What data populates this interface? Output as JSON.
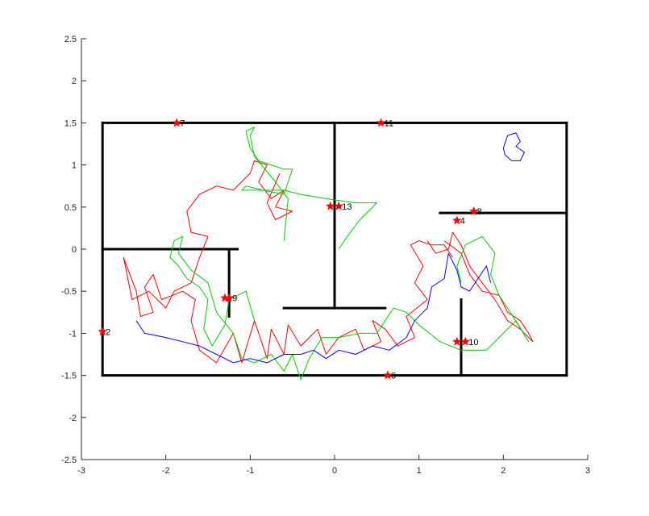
{
  "chart_data": {
    "type": "line",
    "xlim": [
      -3,
      3
    ],
    "ylim": [
      -2.5,
      2.5
    ],
    "xticks": [
      "-3",
      "-2",
      "-1",
      "0",
      "1",
      "2",
      "3"
    ],
    "yticks": [
      "-2.5",
      "-2",
      "-1.5",
      "-1",
      "-0.5",
      "0",
      "0.5",
      "1",
      "1.5",
      "2",
      "2.5"
    ],
    "grid": false,
    "box": false,
    "walls": [
      {
        "x": [
          -2.75,
          2.75
        ],
        "y": [
          1.5,
          1.5
        ]
      },
      {
        "x": [
          -2.75,
          2.75
        ],
        "y": [
          -1.5,
          -1.5
        ]
      },
      {
        "x": [
          -2.75,
          -2.75
        ],
        "y": [
          -1.5,
          1.5
        ]
      },
      {
        "x": [
          2.75,
          2.75
        ],
        "y": [
          -1.5,
          1.5
        ]
      },
      {
        "x": [
          0,
          0
        ],
        "y": [
          -0.7,
          1.5
        ]
      },
      {
        "x": [
          -0.6,
          0.6
        ],
        "y": [
          -0.7,
          -0.7
        ]
      },
      {
        "x": [
          -2.75,
          -1.15
        ],
        "y": [
          0,
          0
        ]
      },
      {
        "x": [
          -1.25,
          -1.25
        ],
        "y": [
          -0.8,
          0
        ]
      },
      {
        "x": [
          1.25,
          2.75
        ],
        "y": [
          0.43,
          0.43
        ]
      },
      {
        "x": [
          1.5,
          1.5
        ],
        "y": [
          -1.5,
          -0.6
        ]
      }
    ],
    "markers": [
      {
        "x": -2.75,
        "y": -0.98,
        "label": "2"
      },
      {
        "x": 1.45,
        "y": 0.34,
        "label": "4"
      },
      {
        "x": 0.63,
        "y": -1.5,
        "label": "6"
      },
      {
        "x": -1.87,
        "y": 1.5,
        "label": "7"
      },
      {
        "x": 1.65,
        "y": 0.45,
        "label": "8"
      },
      {
        "x": -1.25,
        "y": -0.58,
        "label": "9"
      },
      {
        "x": 1.55,
        "y": -1.1,
        "label": "10"
      },
      {
        "x": 0.55,
        "y": 1.5,
        "label": "11"
      },
      {
        "x": 0.05,
        "y": 0.51,
        "label": "13"
      },
      {
        "x": -1.3,
        "y": -0.58,
        "label": ""
      },
      {
        "x": 1.45,
        "y": -1.1,
        "label": ""
      },
      {
        "x": -0.05,
        "y": 0.51,
        "label": ""
      }
    ],
    "series": [
      {
        "color": "#ff0000",
        "points": [
          [
            1.4,
            -0.1
          ],
          [
            1.3,
            0.05
          ],
          [
            1.15,
            0.05
          ],
          [
            1.0,
            0.1
          ],
          [
            0.9,
            0.05
          ],
          [
            1.05,
            -0.2
          ],
          [
            0.95,
            -0.4
          ],
          [
            1.1,
            -0.6
          ],
          [
            0.85,
            -0.8
          ],
          [
            0.95,
            -1.05
          ],
          [
            0.75,
            -1.15
          ],
          [
            0.6,
            -0.95
          ],
          [
            0.45,
            -0.85
          ],
          [
            0.55,
            -1.1
          ],
          [
            0.35,
            -1.2
          ],
          [
            0.25,
            -0.95
          ],
          [
            0.05,
            -1.05
          ],
          [
            -0.1,
            -1.25
          ],
          [
            -0.2,
            -0.95
          ],
          [
            -0.4,
            -1.15
          ],
          [
            -0.55,
            -0.9
          ],
          [
            -0.6,
            -1.25
          ],
          [
            -0.75,
            -0.95
          ],
          [
            -0.8,
            -1.3
          ],
          [
            -0.95,
            -0.85
          ],
          [
            -1.1,
            -1.35
          ],
          [
            -1.2,
            -1.0
          ],
          [
            -1.4,
            -1.35
          ],
          [
            -1.6,
            -1.2
          ],
          [
            -1.7,
            -0.85
          ],
          [
            -1.65,
            -0.6
          ],
          [
            -1.8,
            -0.5
          ],
          [
            -2.05,
            -0.6
          ],
          [
            -2.15,
            -0.3
          ],
          [
            -2.25,
            -0.45
          ],
          [
            -2.15,
            -0.75
          ],
          [
            -2.3,
            -0.8
          ],
          [
            -2.35,
            -0.5
          ],
          [
            -2.5,
            -0.1
          ],
          [
            -2.4,
            -0.6
          ],
          [
            -2.2,
            -0.5
          ],
          [
            -2.0,
            -0.7
          ],
          [
            -1.9,
            -0.5
          ],
          [
            -1.7,
            -0.4
          ],
          [
            -1.6,
            -0.1
          ],
          [
            -1.5,
            0.15
          ],
          [
            -1.7,
            0.2
          ],
          [
            -1.75,
            0.45
          ],
          [
            -1.6,
            0.65
          ],
          [
            -1.4,
            0.75
          ],
          [
            -1.2,
            0.7
          ],
          [
            -1.0,
            0.9
          ],
          [
            -0.95,
            1.05
          ],
          [
            -0.8,
            1.0
          ],
          [
            -0.9,
            0.8
          ],
          [
            -0.75,
            0.6
          ],
          [
            -0.6,
            0.7
          ],
          [
            -0.7,
            0.5
          ],
          [
            -0.5,
            0.45
          ],
          [
            -0.7,
            0.35
          ],
          [
            -0.8,
            0.55
          ],
          [
            -0.65,
            0.9
          ]
        ]
      },
      {
        "color": "#ff0000",
        "points": [
          [
            1.3,
            0.1
          ],
          [
            1.5,
            -0.05
          ],
          [
            1.6,
            -0.3
          ],
          [
            1.75,
            -0.5
          ],
          [
            1.95,
            -0.55
          ],
          [
            2.05,
            -0.75
          ],
          [
            2.2,
            -0.85
          ],
          [
            2.3,
            -1.0
          ],
          [
            2.35,
            -1.1
          ],
          [
            2.2,
            -0.95
          ],
          [
            2.05,
            -0.85
          ],
          [
            1.9,
            -0.6
          ],
          [
            1.75,
            -0.4
          ],
          [
            1.6,
            -0.2
          ],
          [
            1.5,
            0.05
          ],
          [
            1.4,
            0.2
          ],
          [
            1.35,
            0.0
          ],
          [
            1.2,
            -0.05
          ],
          [
            1.1,
            0.1
          ]
        ]
      },
      {
        "color": "#00cc00",
        "points": [
          [
            -0.95,
            -0.85
          ],
          [
            -1.05,
            -0.5
          ],
          [
            -1.25,
            -0.6
          ],
          [
            -1.3,
            -0.9
          ],
          [
            -1.45,
            -1.15
          ],
          [
            -1.55,
            -0.95
          ],
          [
            -1.5,
            -0.6
          ],
          [
            -1.6,
            -0.45
          ],
          [
            -1.75,
            -0.35
          ],
          [
            -1.85,
            -0.2
          ],
          [
            -1.95,
            -0.1
          ],
          [
            -1.9,
            0.1
          ],
          [
            -1.8,
            0.15
          ],
          [
            -1.85,
            -0.05
          ],
          [
            -1.7,
            -0.25
          ],
          [
            -1.5,
            -0.4
          ],
          [
            -1.4,
            -0.75
          ],
          [
            -1.2,
            -1.0
          ],
          [
            -1.1,
            -1.3
          ],
          [
            -0.95,
            -1.35
          ],
          [
            -0.75,
            -1.25
          ],
          [
            -0.6,
            -1.45
          ],
          [
            -0.5,
            -1.25
          ],
          [
            -0.4,
            -1.55
          ],
          [
            -0.3,
            -1.3
          ],
          [
            -0.15,
            -1.05
          ],
          [
            0.05,
            -1.05
          ],
          [
            0.3,
            -1.0
          ],
          [
            0.5,
            -1.0
          ],
          [
            0.7,
            -0.7
          ],
          [
            0.85,
            -0.75
          ],
          [
            1.0,
            -0.9
          ],
          [
            1.25,
            -1.1
          ],
          [
            1.5,
            -1.2
          ],
          [
            1.8,
            -1.2
          ],
          [
            2.0,
            -1.0
          ],
          [
            2.15,
            -0.85
          ],
          [
            2.3,
            -1.1
          ],
          [
            2.05,
            -0.7
          ],
          [
            1.95,
            -0.55
          ],
          [
            1.85,
            -0.3
          ],
          [
            1.9,
            -0.05
          ],
          [
            1.75,
            0.15
          ],
          [
            1.55,
            0.05
          ],
          [
            1.45,
            -0.2
          ],
          [
            1.5,
            -0.4
          ]
        ]
      },
      {
        "color": "#00cc00",
        "points": [
          [
            -0.6,
            0.1
          ],
          [
            -0.55,
            0.6
          ],
          [
            -0.7,
            0.8
          ],
          [
            -0.95,
            1.1
          ],
          [
            -1.0,
            1.35
          ],
          [
            -0.95,
            1.45
          ],
          [
            -1.05,
            1.4
          ],
          [
            -1.0,
            1.2
          ],
          [
            -0.9,
            1.05
          ],
          [
            -0.75,
            1.0
          ],
          [
            -0.6,
            0.95
          ],
          [
            -0.5,
            0.95
          ],
          [
            -0.6,
            0.65
          ],
          [
            -0.85,
            0.7
          ],
          [
            -1.1,
            0.7
          ],
          [
            -1.05,
            0.75
          ],
          [
            -0.85,
            0.7
          ],
          [
            -0.6,
            0.7
          ],
          [
            -0.4,
            0.65
          ],
          [
            -0.1,
            0.6
          ],
          [
            0.25,
            0.55
          ],
          [
            0.5,
            0.55
          ],
          [
            0.3,
            0.35
          ],
          [
            0.15,
            0.15
          ],
          [
            0.05,
            0.0
          ]
        ]
      },
      {
        "color": "#0000ff",
        "points": [
          [
            -2.35,
            -0.85
          ],
          [
            -2.25,
            -1.0
          ],
          [
            -2.0,
            -1.05
          ],
          [
            -1.8,
            -1.1
          ],
          [
            -1.6,
            -1.15
          ],
          [
            -1.4,
            -1.25
          ],
          [
            -1.2,
            -1.35
          ],
          [
            -1.0,
            -1.3
          ],
          [
            -0.8,
            -1.35
          ],
          [
            -0.6,
            -1.25
          ],
          [
            -0.4,
            -1.25
          ],
          [
            -0.25,
            -1.2
          ],
          [
            -0.1,
            -1.3
          ],
          [
            0.05,
            -1.2
          ],
          [
            0.25,
            -1.25
          ],
          [
            0.45,
            -1.15
          ],
          [
            0.65,
            -1.2
          ],
          [
            0.85,
            -1.05
          ],
          [
            0.95,
            -0.85
          ],
          [
            1.1,
            -0.7
          ],
          [
            1.15,
            -0.45
          ],
          [
            1.3,
            -0.35
          ],
          [
            1.35,
            -0.05
          ],
          [
            1.45,
            -0.25
          ],
          [
            1.5,
            -0.45
          ],
          [
            1.6,
            -0.5
          ],
          [
            1.7,
            -0.35
          ],
          [
            1.8,
            -0.2
          ],
          [
            1.85,
            -0.4
          ]
        ]
      },
      {
        "color": "#0000ff",
        "points": [
          [
            2.0,
            1.2
          ],
          [
            2.05,
            1.35
          ],
          [
            2.15,
            1.38
          ],
          [
            2.2,
            1.28
          ],
          [
            2.15,
            1.22
          ],
          [
            2.25,
            1.15
          ],
          [
            2.2,
            1.05
          ],
          [
            2.1,
            1.05
          ],
          [
            2.02,
            1.12
          ],
          [
            2.0,
            1.2
          ]
        ]
      }
    ]
  }
}
